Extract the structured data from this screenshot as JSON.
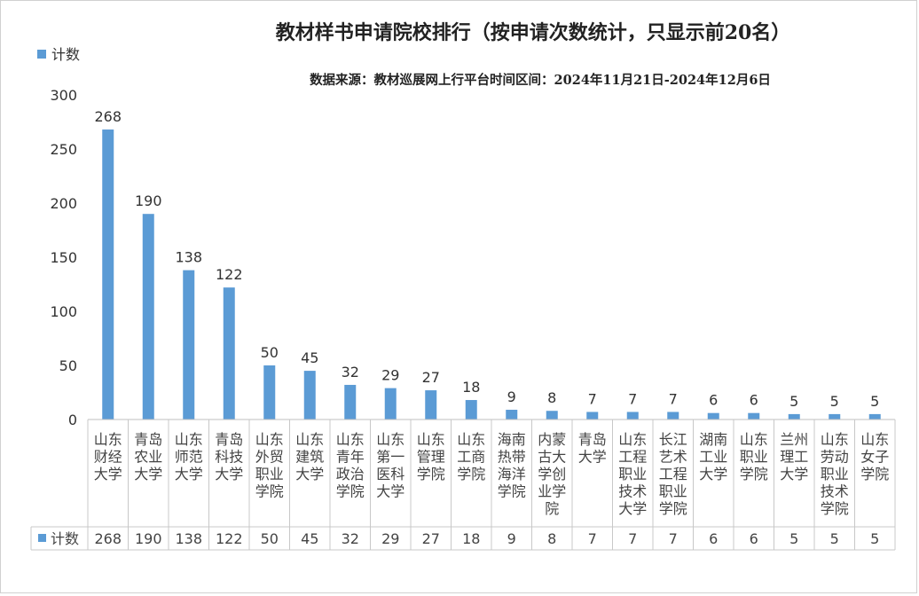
{
  "chart_data": {
    "type": "bar",
    "title": "教材样书申请院校排行（按申请次数统计，只显示前20名）",
    "subtitle": "数据来源：教材巡展网上行平台时间区间：2024年11月21日-2024年12月6日",
    "categories": [
      "山东财经大学",
      "青岛农业大学",
      "山东师范大学",
      "青岛科技大学",
      "山东外贸职业学院",
      "山东建筑大学",
      "山东青年政治学院",
      "山东第一医科大学",
      "山东管理学院",
      "山东工商学院",
      "海南热带海洋学院",
      "内蒙古大学创业学院",
      "青岛大学",
      "山东工程职业技术大学",
      "长江艺术工程职业学院",
      "湖南工业大学",
      "山东职业学院",
      "兰州理工大学",
      "山东劳动职业技术学院",
      "山东女子学院"
    ],
    "category_lines": [
      [
        "山东",
        "财经",
        "大学"
      ],
      [
        "青岛",
        "农业",
        "大学"
      ],
      [
        "山东",
        "师范",
        "大学"
      ],
      [
        "青岛",
        "科技",
        "大学"
      ],
      [
        "山东",
        "外贸",
        "职业",
        "学院"
      ],
      [
        "山东",
        "建筑",
        "大学"
      ],
      [
        "山东",
        "青年",
        "政治",
        "学院"
      ],
      [
        "山东",
        "第一",
        "医科",
        "大学"
      ],
      [
        "山东",
        "管理",
        "学院"
      ],
      [
        "山东",
        "工商",
        "学院"
      ],
      [
        "海南",
        "热带",
        "海洋",
        "学院"
      ],
      [
        "内蒙",
        "古大",
        "学创",
        "业学",
        "院"
      ],
      [
        "青岛",
        "大学"
      ],
      [
        "山东",
        "工程",
        "职业",
        "技术",
        "大学"
      ],
      [
        "长江",
        "艺术",
        "工程",
        "职业",
        "学院"
      ],
      [
        "湖南",
        "工业",
        "大学"
      ],
      [
        "山东",
        "职业",
        "学院"
      ],
      [
        "兰州",
        "理工",
        "大学"
      ],
      [
        "山东",
        "劳动",
        "职业",
        "技术",
        "学院"
      ],
      [
        "山东",
        "女子",
        "学院"
      ]
    ],
    "series": [
      {
        "name": "计数",
        "values": [
          268,
          190,
          138,
          122,
          50,
          45,
          32,
          29,
          27,
          18,
          9,
          8,
          7,
          7,
          7,
          6,
          6,
          5,
          5,
          5
        ]
      }
    ],
    "ylim": [
      0,
      300
    ],
    "yticks": [
      0,
      50,
      100,
      150,
      200,
      250,
      300
    ],
    "grid": false,
    "legend_position": "top-left",
    "data_table": true,
    "bar_color": "#5B9BD5"
  }
}
